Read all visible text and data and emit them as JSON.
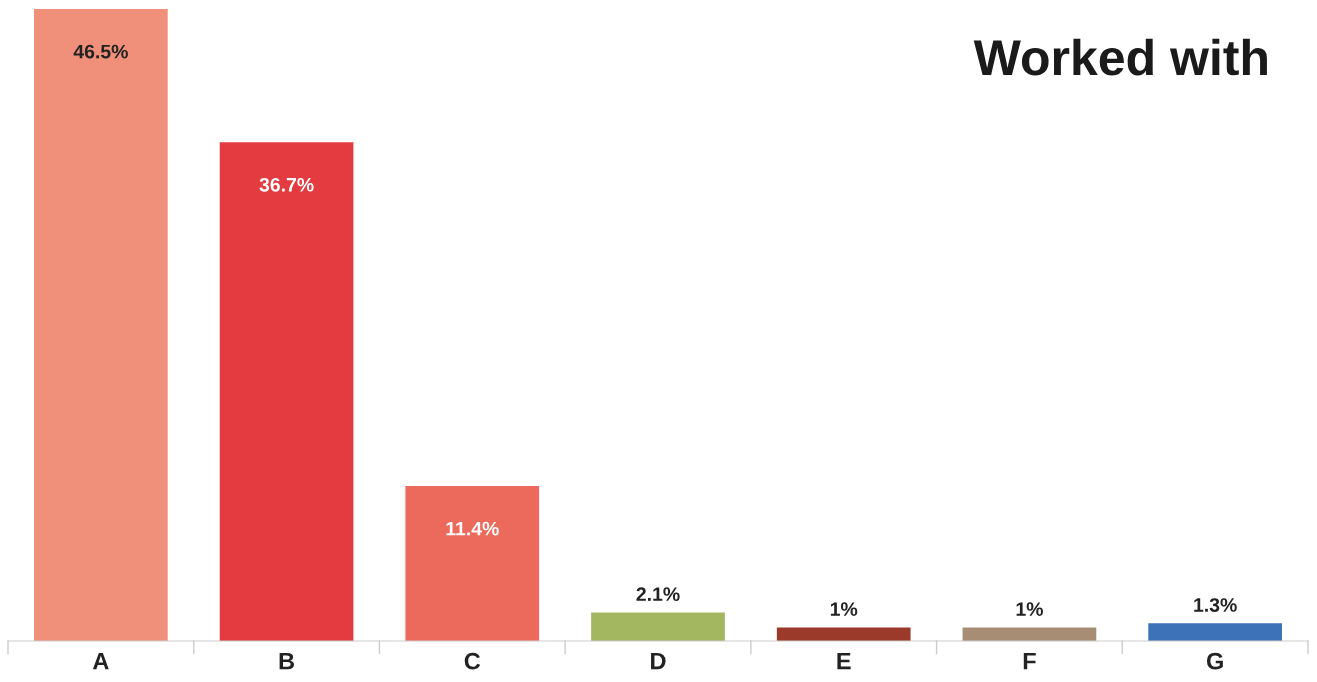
{
  "chart_data": {
    "type": "bar",
    "title": "Worked with",
    "categories": [
      "A",
      "B",
      "C",
      "D",
      "E",
      "F",
      "G"
    ],
    "values": [
      46.5,
      36.7,
      11.4,
      2.1,
      1,
      1,
      1.3
    ],
    "colors": [
      "#f0907a",
      "#e33b40",
      "#ec6a5b",
      "#a3b760",
      "#9b3a2b",
      "#a88d75",
      "#3d72b8"
    ],
    "value_labels": [
      "46.5%",
      "36.7%",
      "11.4%",
      "2.1%",
      "1%",
      "1%",
      "1.3%"
    ],
    "grid": false,
    "legend": false
  }
}
